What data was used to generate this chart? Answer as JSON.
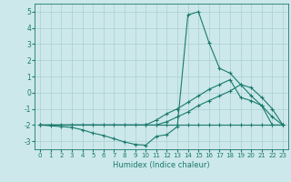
{
  "xlabel": "Humidex (Indice chaleur)",
  "ylabel": "",
  "background_color": "#cce8ea",
  "grid_color": "#aacfd2",
  "line_color": "#1a7a6e",
  "xlim": [
    -0.5,
    23.5
  ],
  "ylim": [
    -3.5,
    5.5
  ],
  "yticks": [
    -3,
    -2,
    -1,
    0,
    1,
    2,
    3,
    4,
    5
  ],
  "xticks": [
    0,
    1,
    2,
    3,
    4,
    5,
    6,
    7,
    8,
    9,
    10,
    11,
    12,
    13,
    14,
    15,
    16,
    17,
    18,
    19,
    20,
    21,
    22,
    23
  ],
  "lines": [
    {
      "x": [
        0,
        1,
        2,
        3,
        4,
        5,
        6,
        7,
        8,
        9,
        10,
        11,
        12,
        13,
        14,
        15,
        16,
        17,
        18,
        19,
        20,
        21,
        22,
        23
      ],
      "y": [
        -2.0,
        -2.0,
        -2.0,
        -2.0,
        -2.0,
        -2.0,
        -2.0,
        -2.0,
        -2.0,
        -2.0,
        -2.0,
        -2.0,
        -2.0,
        -2.0,
        -2.0,
        -2.0,
        -2.0,
        -2.0,
        -2.0,
        -2.0,
        -2.0,
        -2.0,
        -2.0,
        -2.0
      ]
    },
    {
      "x": [
        0,
        10,
        11,
        12,
        13,
        14,
        15,
        16,
        17,
        18,
        19,
        20,
        21,
        22,
        23
      ],
      "y": [
        -2.0,
        -2.0,
        -2.0,
        -1.8,
        -1.5,
        -1.2,
        -0.8,
        -0.5,
        -0.2,
        0.1,
        0.5,
        0.3,
        -0.3,
        -1.0,
        -2.0
      ]
    },
    {
      "x": [
        0,
        10,
        11,
        12,
        13,
        14,
        15,
        16,
        17,
        18,
        19,
        20,
        21,
        22,
        23
      ],
      "y": [
        -2.0,
        -2.0,
        -1.7,
        -1.3,
        -1.0,
        -0.6,
        -0.2,
        0.2,
        0.5,
        0.8,
        -0.3,
        -0.5,
        -0.8,
        -1.5,
        -2.0
      ]
    },
    {
      "x": [
        0,
        1,
        2,
        3,
        4,
        5,
        6,
        7,
        8,
        9,
        10,
        11,
        12,
        13,
        14,
        15,
        16,
        17,
        18,
        19,
        20,
        21,
        22,
        23
      ],
      "y": [
        -2.0,
        -2.05,
        -2.1,
        -2.15,
        -2.3,
        -2.5,
        -2.65,
        -2.85,
        -3.05,
        -3.2,
        -3.25,
        -2.7,
        -2.6,
        -2.1,
        4.8,
        5.0,
        3.1,
        1.5,
        1.2,
        0.5,
        -0.2,
        -0.8,
        -2.0,
        -2.0
      ]
    }
  ]
}
